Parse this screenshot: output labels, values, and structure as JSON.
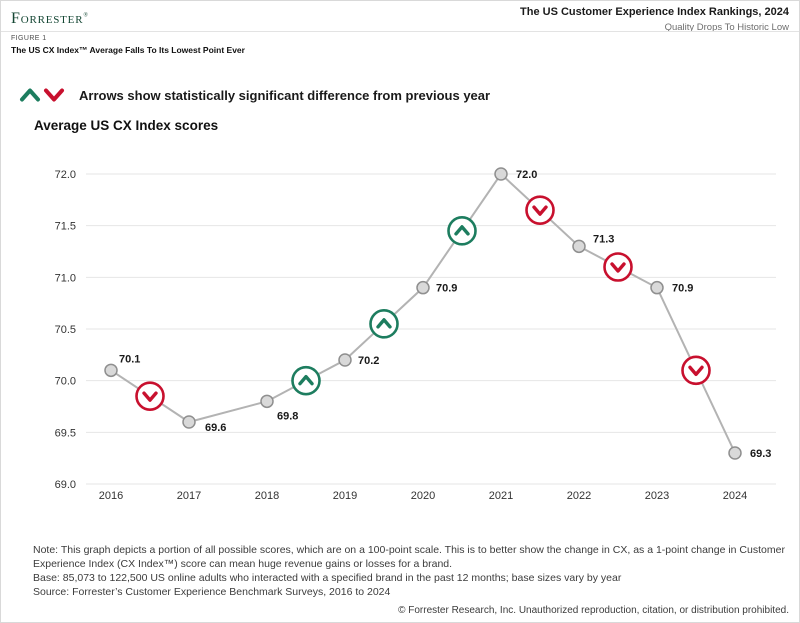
{
  "header": {
    "logo_text": "Forrester",
    "logo_trademark": "®",
    "report_title": "The US Customer Experience Index Rankings, 2024",
    "report_subtitle": "Quality Drops To Historic Low"
  },
  "figure": {
    "label": "FIGURE 1",
    "title": "The US CX Index™ Average Falls To Its Lowest Point Ever"
  },
  "legend": {
    "text": "Arrows show statistically significant difference from previous year"
  },
  "chart_data": {
    "type": "line",
    "title": "Average US CX Index scores",
    "x": [
      "2016",
      "2017",
      "2018",
      "2019",
      "2020",
      "2021",
      "2022",
      "2023",
      "2024"
    ],
    "values": [
      70.1,
      69.6,
      69.8,
      70.2,
      70.9,
      72.0,
      71.3,
      70.9,
      69.3
    ],
    "ylim": [
      69.0,
      72.0
    ],
    "yticks": [
      72.0,
      71.5,
      71.0,
      70.5,
      70.0,
      69.5,
      69.0
    ],
    "grid": true,
    "legend_position": "top-left",
    "significant_changes": [
      {
        "from": "2016",
        "to": "2017",
        "direction": "down"
      },
      {
        "from": "2018",
        "to": "2019",
        "direction": "up"
      },
      {
        "from": "2019",
        "to": "2020",
        "direction": "up"
      },
      {
        "from": "2020",
        "to": "2021",
        "direction": "up"
      },
      {
        "from": "2021",
        "to": "2022",
        "direction": "down"
      },
      {
        "from": "2022",
        "to": "2023",
        "direction": "down"
      },
      {
        "from": "2023",
        "to": "2024",
        "direction": "down"
      }
    ],
    "colors": {
      "up": "#1d7d5f",
      "down": "#c8102e",
      "line": "#b3b3b3",
      "point_fill": "#d9d9d9",
      "point_stroke": "#8f8f8f",
      "grid": "#e6e6e6",
      "tick_label": "#333333",
      "value_label": "#1a1a1a"
    }
  },
  "notes": {
    "note": "Note: This graph depicts a portion of all possible scores, which are on a 100-point scale. This is to better show the change in CX, as a 1-point change in Customer Experience Index (CX Index™) score can mean huge revenue gains or losses for a brand.",
    "base": "Base: 85,073 to 122,500 US online adults who interacted with a specified brand in the past 12 months; base sizes vary by year",
    "source": "Source: Forrester’s Customer Experience Benchmark Surveys, 2016 to 2024"
  },
  "footer": {
    "copyright": "© Forrester Research, Inc. Unauthorized reproduction, citation, or distribution prohibited."
  }
}
